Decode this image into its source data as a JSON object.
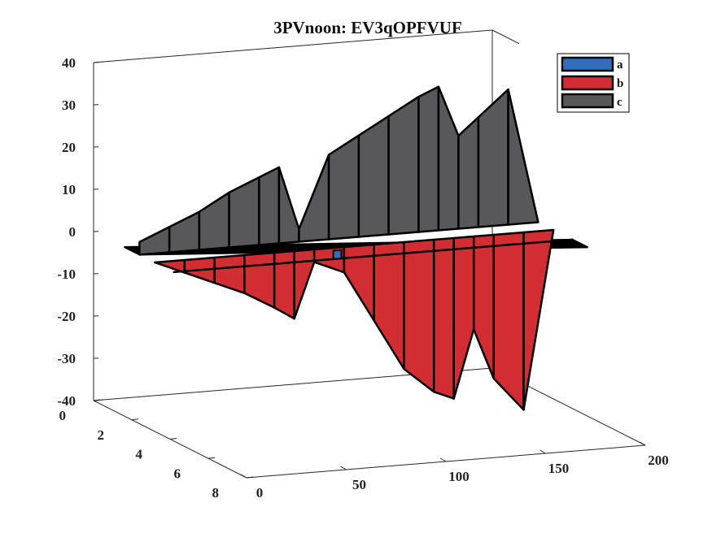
{
  "chart_data": {
    "type": "area",
    "title": "3PVnoon: EV3qOPFVUF",
    "xlabel": "",
    "ylabel": "",
    "zlabel": "",
    "xlim": [
      0,
      200
    ],
    "ylim": [
      0,
      8
    ],
    "zlim": [
      -40,
      40
    ],
    "x_ticks": [
      "0",
      "50",
      "100",
      "150",
      "200"
    ],
    "y_ticks": [
      "0",
      "2",
      "4",
      "6",
      "8"
    ],
    "z_ticks": [
      "40",
      "30",
      "20",
      "10",
      "0",
      "-10",
      "-20",
      "-30",
      "-40"
    ],
    "legend_position": "top-right",
    "series": [
      {
        "name": "a",
        "color": "#2f6fbe",
        "x": [
          0,
          20,
          40,
          60,
          80,
          100,
          120,
          140,
          160,
          180,
          200
        ],
        "z": [
          0,
          0,
          0,
          0,
          0,
          0,
          0,
          0,
          0,
          0,
          0
        ],
        "spikes": [
          {
            "x": 82,
            "z": 2
          }
        ]
      },
      {
        "name": "b",
        "color": "#d22d32",
        "x": [
          0,
          15,
          30,
          45,
          60,
          70,
          80,
          95,
          110,
          125,
          140,
          150,
          160,
          170,
          185,
          200
        ],
        "z": [
          0,
          -3,
          -6,
          -9,
          -13,
          -16,
          -3,
          -6,
          -18,
          -30,
          -36,
          -38,
          -22,
          -34,
          -42,
          0
        ]
      },
      {
        "name": "c",
        "color": "#58585b",
        "x": [
          0,
          15,
          30,
          45,
          60,
          70,
          80,
          95,
          110,
          125,
          140,
          150,
          160,
          170,
          185,
          200
        ],
        "z": [
          3,
          6,
          9,
          13,
          16,
          18,
          3,
          20,
          24,
          28,
          32,
          34,
          22,
          26,
          32,
          0
        ]
      }
    ]
  }
}
